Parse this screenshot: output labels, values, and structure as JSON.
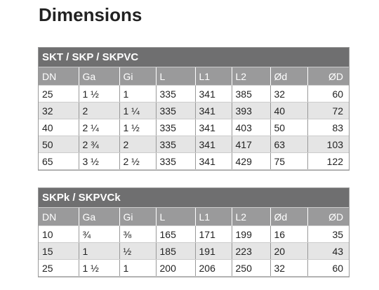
{
  "header": {
    "title": "Dimensions"
  },
  "tables": [
    {
      "title": "SKT / SKP / SKPVC",
      "columns": [
        "DN",
        "Ga",
        "Gi",
        "L",
        "L1",
        "L2",
        "Ød",
        "ØD"
      ],
      "rows": [
        [
          25,
          "1 ½",
          1,
          335,
          341,
          385,
          32,
          60
        ],
        [
          32,
          2,
          "1 ¼",
          335,
          341,
          393,
          40,
          72
        ],
        [
          40,
          "2 ¼",
          "1 ½",
          335,
          341,
          403,
          50,
          83
        ],
        [
          50,
          "2 ¾",
          2,
          335,
          341,
          417,
          63,
          103
        ],
        [
          65,
          "3 ½",
          "2 ½",
          335,
          341,
          429,
          75,
          122
        ]
      ]
    },
    {
      "title": "SKPk / SKPVCk",
      "columns": [
        "DN",
        "Ga",
        "Gi",
        "L",
        "L1",
        "L2",
        "Ød",
        "ØD"
      ],
      "rows": [
        [
          10,
          "¾",
          "⅜",
          165,
          171,
          199,
          16,
          35
        ],
        [
          15,
          1,
          "½",
          185,
          191,
          223,
          20,
          43
        ],
        [
          25,
          "1 ½",
          1,
          200,
          206,
          250,
          32,
          60
        ]
      ]
    }
  ]
}
